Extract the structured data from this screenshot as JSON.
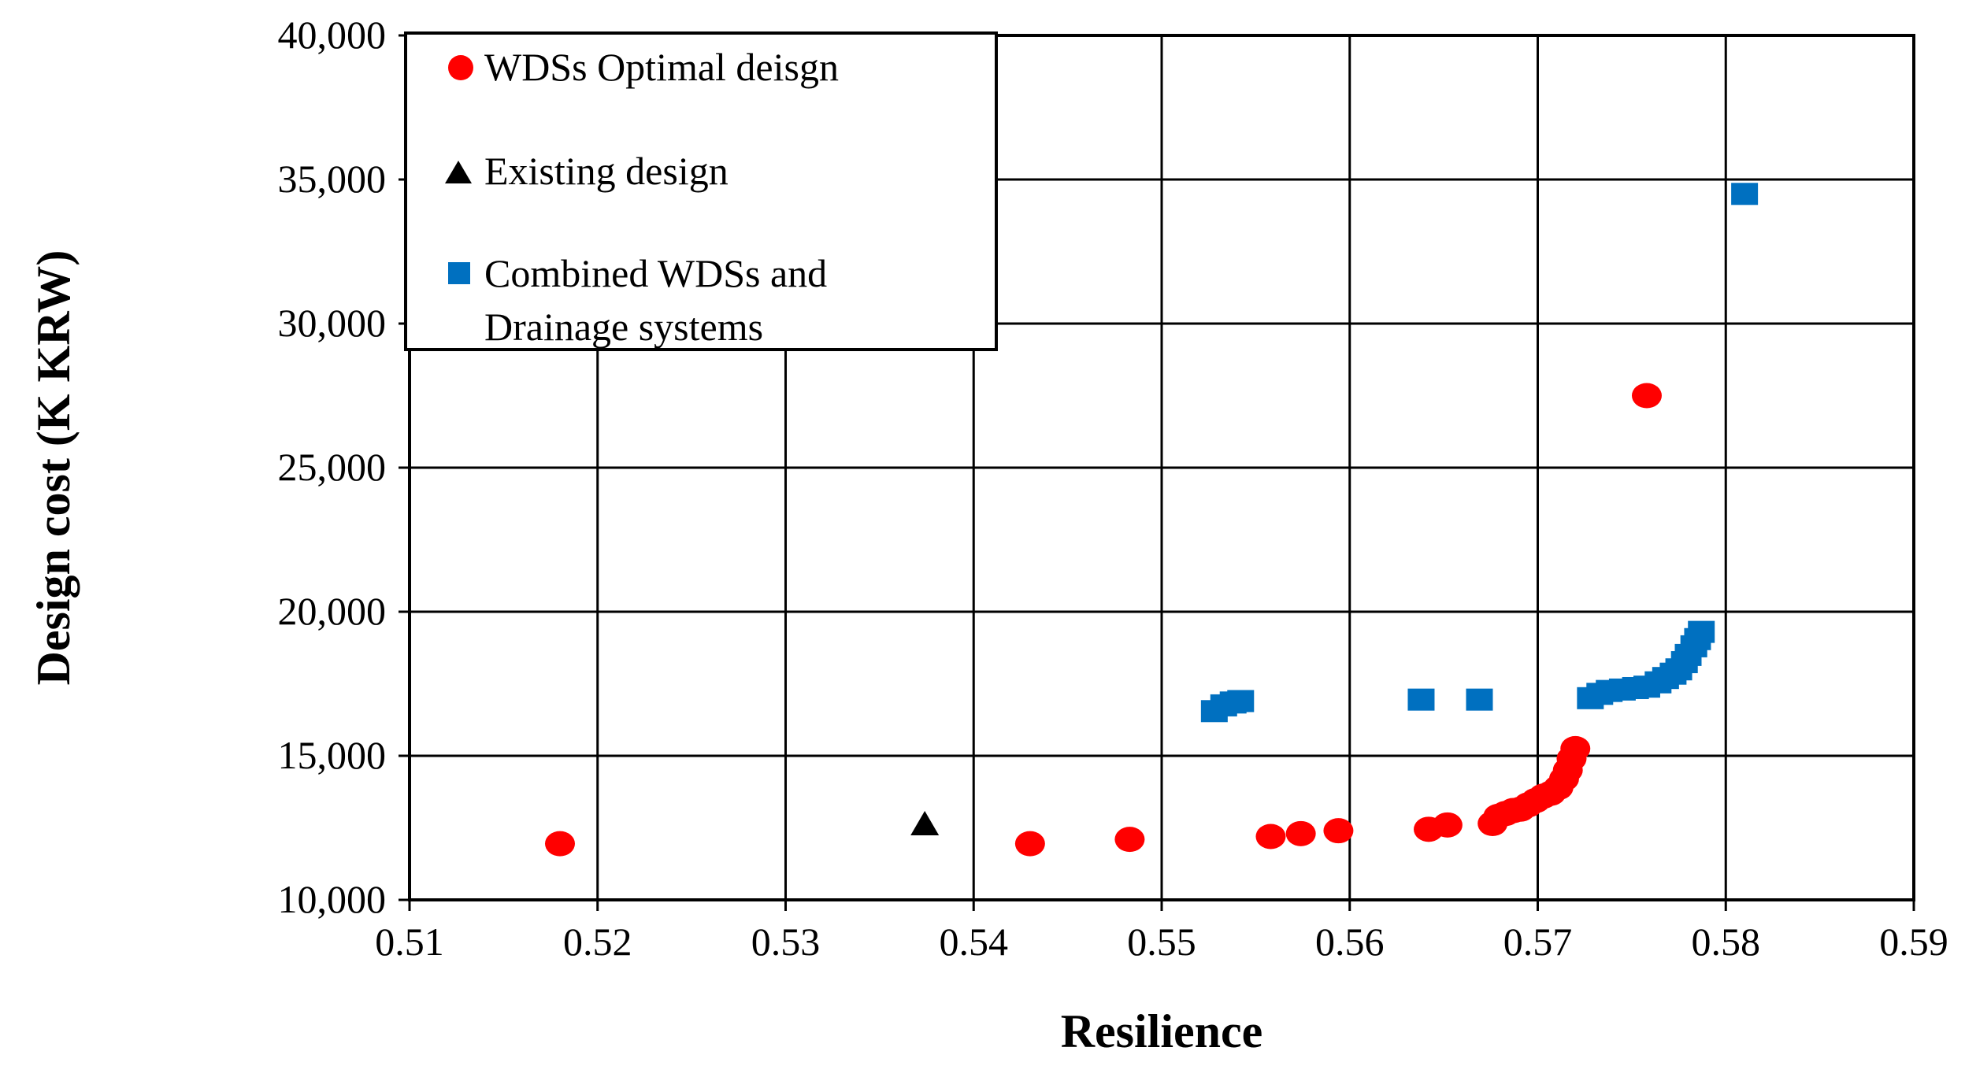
{
  "chart_data": {
    "type": "scatter",
    "title": "",
    "xlabel": "Resilience",
    "ylabel": "Design cost (K KRW)",
    "xlim": [
      0.51,
      0.59
    ],
    "ylim": [
      10000,
      40000
    ],
    "x_ticks": [
      "0.51",
      "0.52",
      "0.53",
      "0.54",
      "0.55",
      "0.56",
      "0.57",
      "0.58",
      "0.59"
    ],
    "y_ticks": [
      "10,000",
      "15,000",
      "20,000",
      "25,000",
      "30,000",
      "35,000",
      "40,000"
    ],
    "grid": true,
    "legend_position": "top-left",
    "series": [
      {
        "name": "WDSs Optimal deisgn",
        "marker": "circle",
        "color": "#ff0000",
        "points": [
          [
            0.518,
            11950
          ],
          [
            0.543,
            11950
          ],
          [
            0.5483,
            12100
          ],
          [
            0.5558,
            12200
          ],
          [
            0.5574,
            12300
          ],
          [
            0.5594,
            12400
          ],
          [
            0.5642,
            12450
          ],
          [
            0.5652,
            12600
          ],
          [
            0.5676,
            12650
          ],
          [
            0.5679,
            12900
          ],
          [
            0.5683,
            13000
          ],
          [
            0.5687,
            13100
          ],
          [
            0.5691,
            13150
          ],
          [
            0.5695,
            13300
          ],
          [
            0.5699,
            13450
          ],
          [
            0.5703,
            13600
          ],
          [
            0.5707,
            13700
          ],
          [
            0.5711,
            13900
          ],
          [
            0.5714,
            14200
          ],
          [
            0.5716,
            14500
          ],
          [
            0.5718,
            14900
          ],
          [
            0.572,
            15250
          ],
          [
            0.5758,
            27500
          ]
        ]
      },
      {
        "name": "Existing design",
        "marker": "triangle",
        "color": "#000000",
        "points": [
          [
            0.5374,
            12650
          ]
        ]
      },
      {
        "name": "Combined WDSs and Drainage systems",
        "name_lines": [
          "Combined WDSs and",
          "Drainage systems"
        ],
        "marker": "square",
        "color": "#0070c0",
        "points": [
          [
            0.5528,
            16550
          ],
          [
            0.5533,
            16750
          ],
          [
            0.5538,
            16850
          ],
          [
            0.5542,
            16900
          ],
          [
            0.5638,
            16950
          ],
          [
            0.5669,
            16950
          ],
          [
            0.5728,
            17000
          ],
          [
            0.5733,
            17150
          ],
          [
            0.5738,
            17250
          ],
          [
            0.5745,
            17300
          ],
          [
            0.5752,
            17350
          ],
          [
            0.5758,
            17400
          ],
          [
            0.5764,
            17550
          ],
          [
            0.5768,
            17700
          ],
          [
            0.5772,
            17850
          ],
          [
            0.5775,
            18000
          ],
          [
            0.5778,
            18250
          ],
          [
            0.578,
            18500
          ],
          [
            0.5783,
            18800
          ],
          [
            0.5785,
            19050
          ],
          [
            0.5787,
            19300
          ],
          [
            0.581,
            34500
          ]
        ]
      }
    ]
  }
}
